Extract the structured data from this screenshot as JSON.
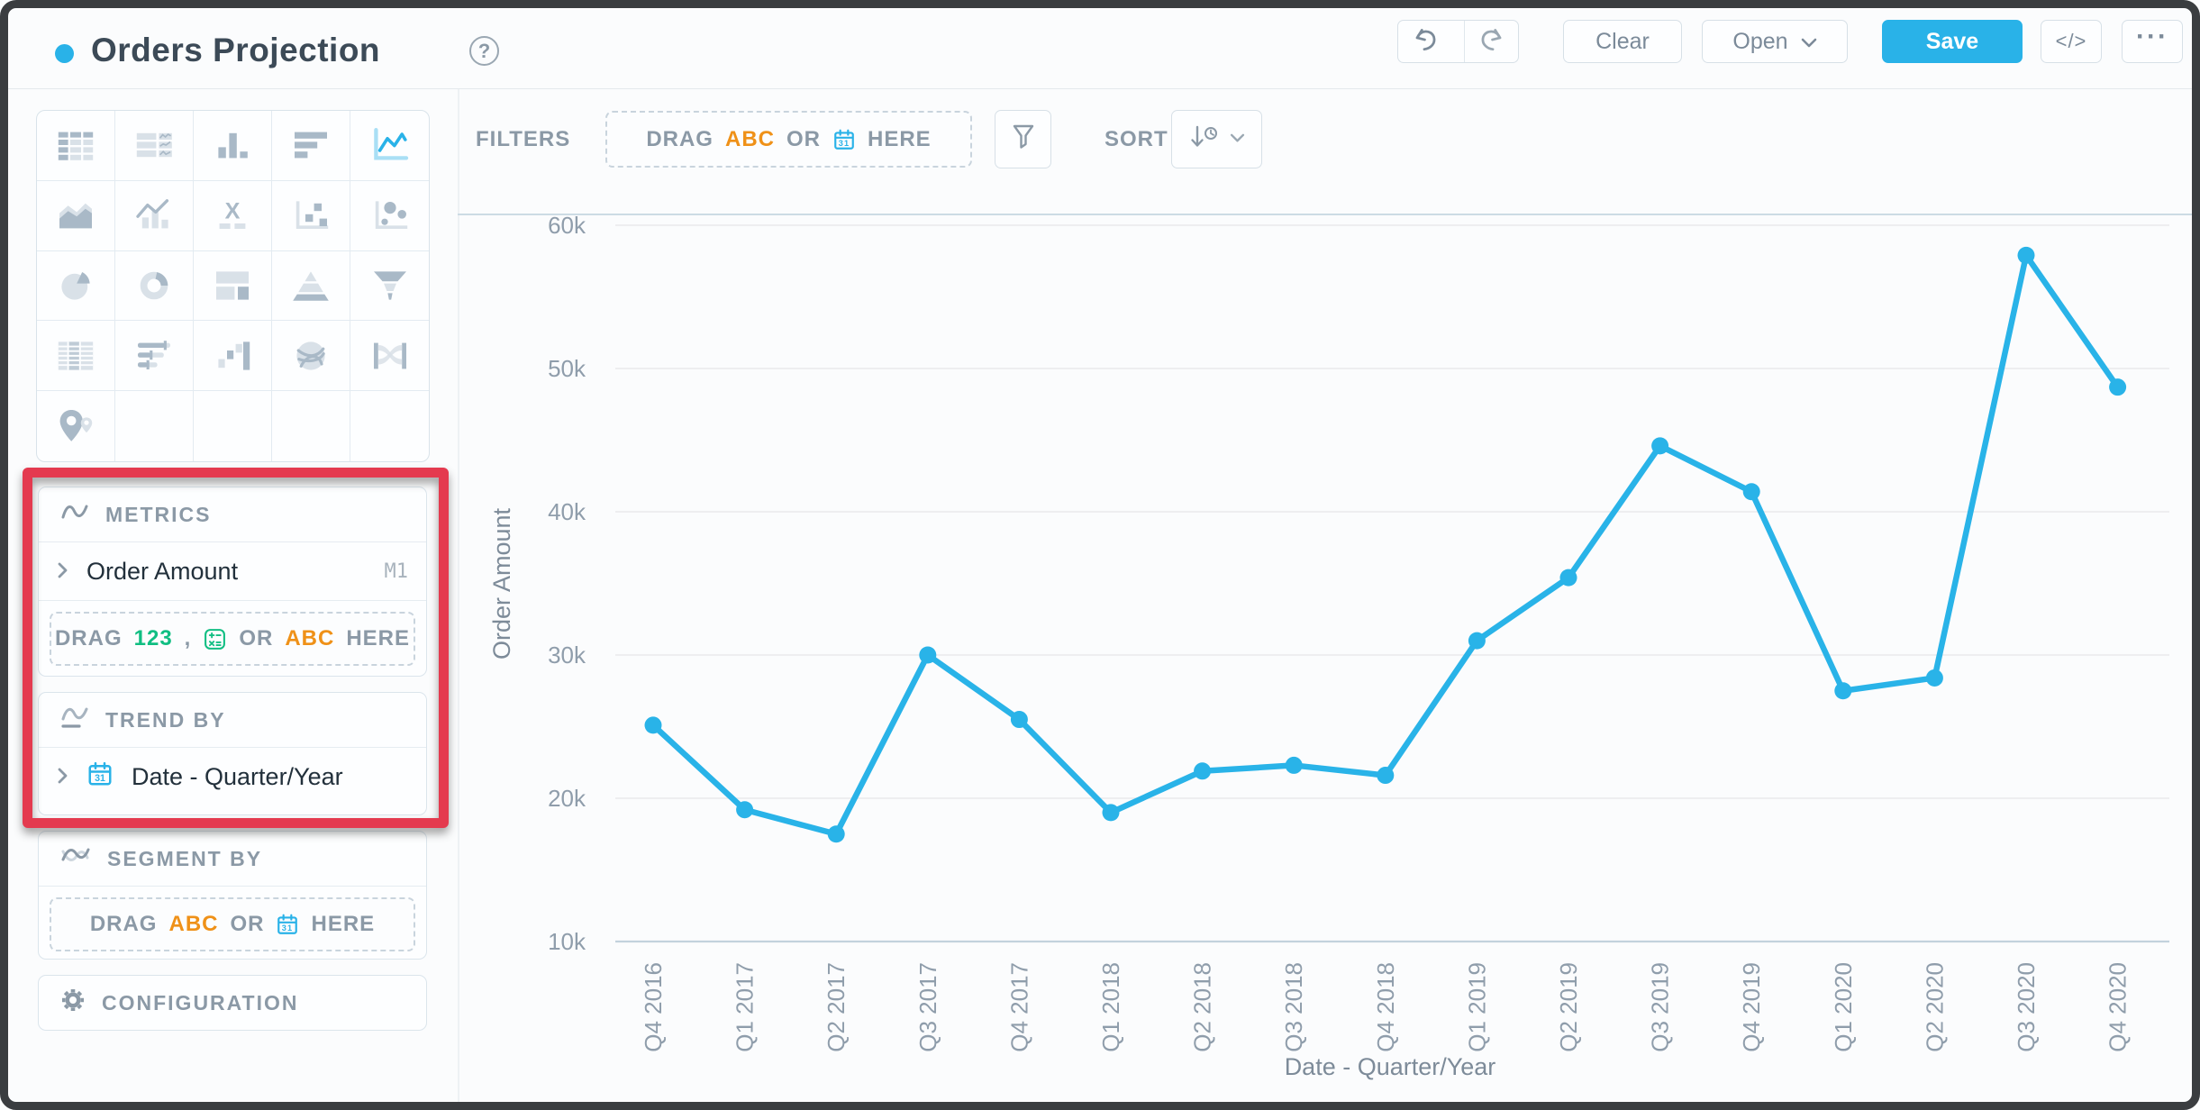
{
  "header": {
    "title": "Orders Projection",
    "buttons": {
      "clear": "Clear",
      "open": "Open",
      "save": "Save",
      "code": "</>",
      "more": "···"
    },
    "help": "?"
  },
  "chart_picker": {
    "selected": "line",
    "cells": [
      "table",
      "pivot",
      "column",
      "bar",
      "line",
      "area",
      "combo",
      "x-indicator",
      "scatter",
      "bubble",
      "pie",
      "donut",
      "treemap",
      "pyramid",
      "funnel",
      "grid-table",
      "sliders",
      "waterfall",
      "chord",
      "sankey",
      "map",
      null,
      null,
      null,
      null
    ]
  },
  "panels": {
    "metrics": {
      "title": "METRICS",
      "item": "Order Amount",
      "badge": "M1",
      "drag": {
        "segments": [
          {
            "t": "DRAG",
            "c": "gray"
          },
          {
            "t": "123",
            "c": "green"
          },
          {
            "t": ",",
            "c": "gray"
          },
          {
            "i": "calculator-icon"
          },
          {
            "t": "OR",
            "c": "gray"
          },
          {
            "t": "ABC",
            "c": "orange"
          },
          {
            "t": "HERE",
            "c": "gray"
          }
        ]
      }
    },
    "trend_by": {
      "title": "TREND BY",
      "item": "Date - Quarter/Year"
    },
    "segment_by": {
      "title": "SEGMENT BY",
      "drag": {
        "segments": [
          {
            "t": "DRAG",
            "c": "gray"
          },
          {
            "t": "ABC",
            "c": "orange"
          },
          {
            "t": "OR",
            "c": "gray"
          },
          {
            "i": "calendar-icon"
          },
          {
            "t": "HERE",
            "c": "gray"
          }
        ]
      }
    },
    "configuration": {
      "title": "CONFIGURATION"
    }
  },
  "toolbar": {
    "filters_label": "FILTERS",
    "sort_label": "SORT",
    "drag": {
      "segments": [
        {
          "t": "DRAG",
          "c": "gray"
        },
        {
          "t": "ABC",
          "c": "orange"
        },
        {
          "t": "OR",
          "c": "gray"
        },
        {
          "i": "calendar-icon"
        },
        {
          "t": "HERE",
          "c": "gray"
        }
      ]
    }
  },
  "colors": {
    "accent": "#29B2E8",
    "line": "#29B3E8",
    "green": "#10BE82",
    "orange": "#EF9118",
    "red_highlight": "#E43A4F",
    "axis_text": "#8f9dab",
    "axis_title_text": "#7d8b99",
    "grid_line": "#e9eaec",
    "axis_line": "#c3d2dd"
  },
  "chart_data": {
    "type": "line",
    "title": "",
    "xlabel": "Date - Quarter/Year",
    "ylabel": "Order Amount",
    "ylim": [
      10000,
      60000
    ],
    "grid": true,
    "legend": "none",
    "ytick_values": [
      60000,
      50000,
      40000,
      30000,
      20000,
      10000
    ],
    "ytick_labels": [
      "60k",
      "50k",
      "40k",
      "30k",
      "20k",
      "10k"
    ],
    "categories": [
      "Q4 2016",
      "Q1 2017",
      "Q2 2017",
      "Q3 2017",
      "Q4 2017",
      "Q1 2018",
      "Q2 2018",
      "Q3 2018",
      "Q4 2018",
      "Q1 2019",
      "Q2 2019",
      "Q3 2019",
      "Q4 2019",
      "Q1 2020",
      "Q2 2020",
      "Q3 2020",
      "Q4 2020"
    ],
    "values": [
      25100,
      19200,
      17500,
      30000,
      25500,
      19000,
      21900,
      22300,
      21600,
      31000,
      35400,
      44600,
      41400,
      27500,
      28400,
      57900,
      48700
    ]
  }
}
